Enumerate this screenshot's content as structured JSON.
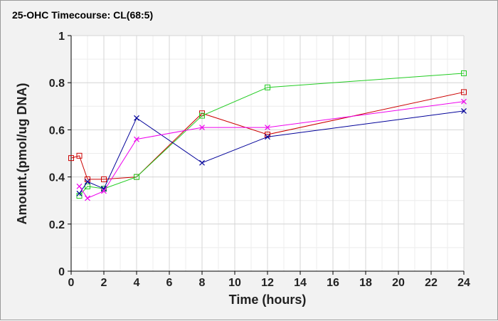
{
  "chart_data": {
    "type": "line",
    "title": "25-OHC Timecourse: CL(68:5)",
    "xlabel": "Time (hours)",
    "ylabel": "Amount.(pmol/ug DNA)",
    "xlim": [
      0,
      24
    ],
    "ylim": [
      0,
      1
    ],
    "x_ticks": [
      0,
      2,
      4,
      6,
      8,
      10,
      12,
      14,
      16,
      18,
      20,
      22,
      24
    ],
    "y_ticks": [
      0,
      0.2,
      0.4,
      0.6,
      0.8,
      1
    ],
    "y_tick_labels": [
      "0",
      "0.2",
      "0.4",
      "0.6",
      "0.8",
      "1"
    ],
    "grid": true,
    "legend": "none",
    "series": [
      {
        "color": "#cc0000",
        "marker": "square",
        "x": [
          0,
          0.5,
          1,
          2,
          4,
          8,
          12,
          24
        ],
        "y": [
          0.48,
          0.49,
          0.39,
          0.39,
          0.4,
          0.67,
          0.58,
          0.76
        ]
      },
      {
        "color": "#22cc22",
        "marker": "square",
        "x": [
          0.5,
          1,
          2,
          4,
          8,
          12,
          24
        ],
        "y": [
          0.32,
          0.36,
          0.35,
          0.4,
          0.66,
          0.78,
          0.84
        ]
      },
      {
        "color": "#000099",
        "marker": "x",
        "x": [
          0.5,
          1,
          2,
          4,
          8,
          12,
          24
        ],
        "y": [
          0.33,
          0.38,
          0.35,
          0.65,
          0.46,
          0.57,
          0.68
        ]
      },
      {
        "color": "#ee00ee",
        "marker": "x",
        "x": [
          0.5,
          1,
          2,
          4,
          8,
          12,
          24
        ],
        "y": [
          0.36,
          0.31,
          0.34,
          0.56,
          0.61,
          0.61,
          0.72
        ]
      }
    ]
  }
}
